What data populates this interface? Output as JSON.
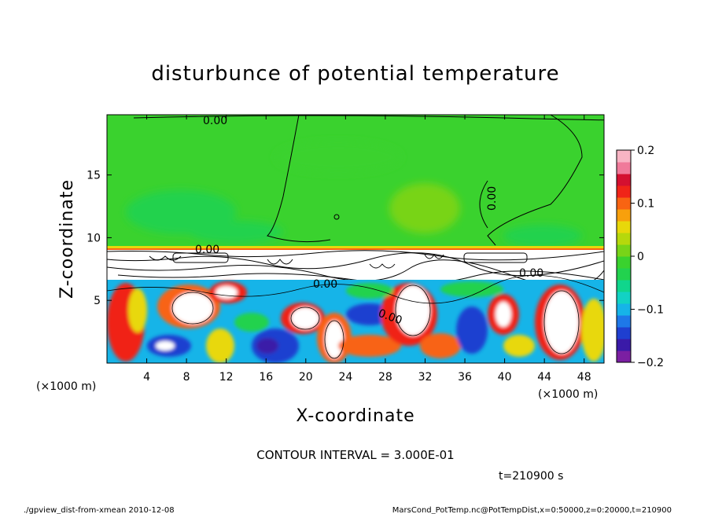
{
  "chart_data": {
    "type": "heatmap",
    "title": "disturbunce of potential temperature",
    "xlabel": "X-coordinate",
    "ylabel": "Z-coordinate",
    "x_unit_left": "(×1000 m)",
    "x_unit_right": "(×1000 m)",
    "xlim": [
      0,
      50
    ],
    "ylim": [
      0,
      19.8
    ],
    "xticks": [
      "4",
      "8",
      "12",
      "16",
      "20",
      "24",
      "28",
      "32",
      "36",
      "40",
      "44",
      "48"
    ],
    "xtick_values": [
      4,
      8,
      12,
      16,
      20,
      24,
      28,
      32,
      36,
      40,
      44,
      48
    ],
    "yticks": [
      "5",
      "10",
      "15"
    ],
    "ytick_values": [
      5,
      10,
      15
    ],
    "colorbar": {
      "range": [
        -0.2,
        0.2
      ],
      "tick_labels": [
        "0.2",
        "0.1",
        "0",
        "−0.1",
        "−0.2"
      ],
      "tick_values": [
        0.2,
        0.1,
        0,
        -0.1,
        -0.2
      ],
      "colors": [
        "#7b1fa2",
        "#3a1aa8",
        "#1f3fd0",
        "#1e78e8",
        "#16b4e8",
        "#12d2c4",
        "#10d68c",
        "#22d24e",
        "#3ad22e",
        "#78d418",
        "#b6d80c",
        "#e8d80a",
        "#f8a00c",
        "#f86412",
        "#f02418",
        "#d41030",
        "#f07a9a",
        "#f8b4c4"
      ]
    },
    "contour_interval_text": "CONTOUR INTERVAL = 3.000E-01",
    "contour_labels": [
      "0.00",
      "0.00",
      "0.00",
      "0.00",
      "0.00",
      "0.00"
    ],
    "time_text": "t=210900 s",
    "footer_left": "./gpview_dist-from-xmean  2010-12-08",
    "footer_right": "MarsCond_PotTemp.nc@PotTempDist,x=0:50000,z=0:20000,t=210900",
    "fields": {
      "upper_layer": {
        "z_range": [
          9.3,
          19.8
        ],
        "value_approx": 0.0
      },
      "lower_layer": {
        "z_range": [
          0,
          7.0
        ],
        "value_range": [
          -0.2,
          0.2
        ]
      }
    }
  }
}
